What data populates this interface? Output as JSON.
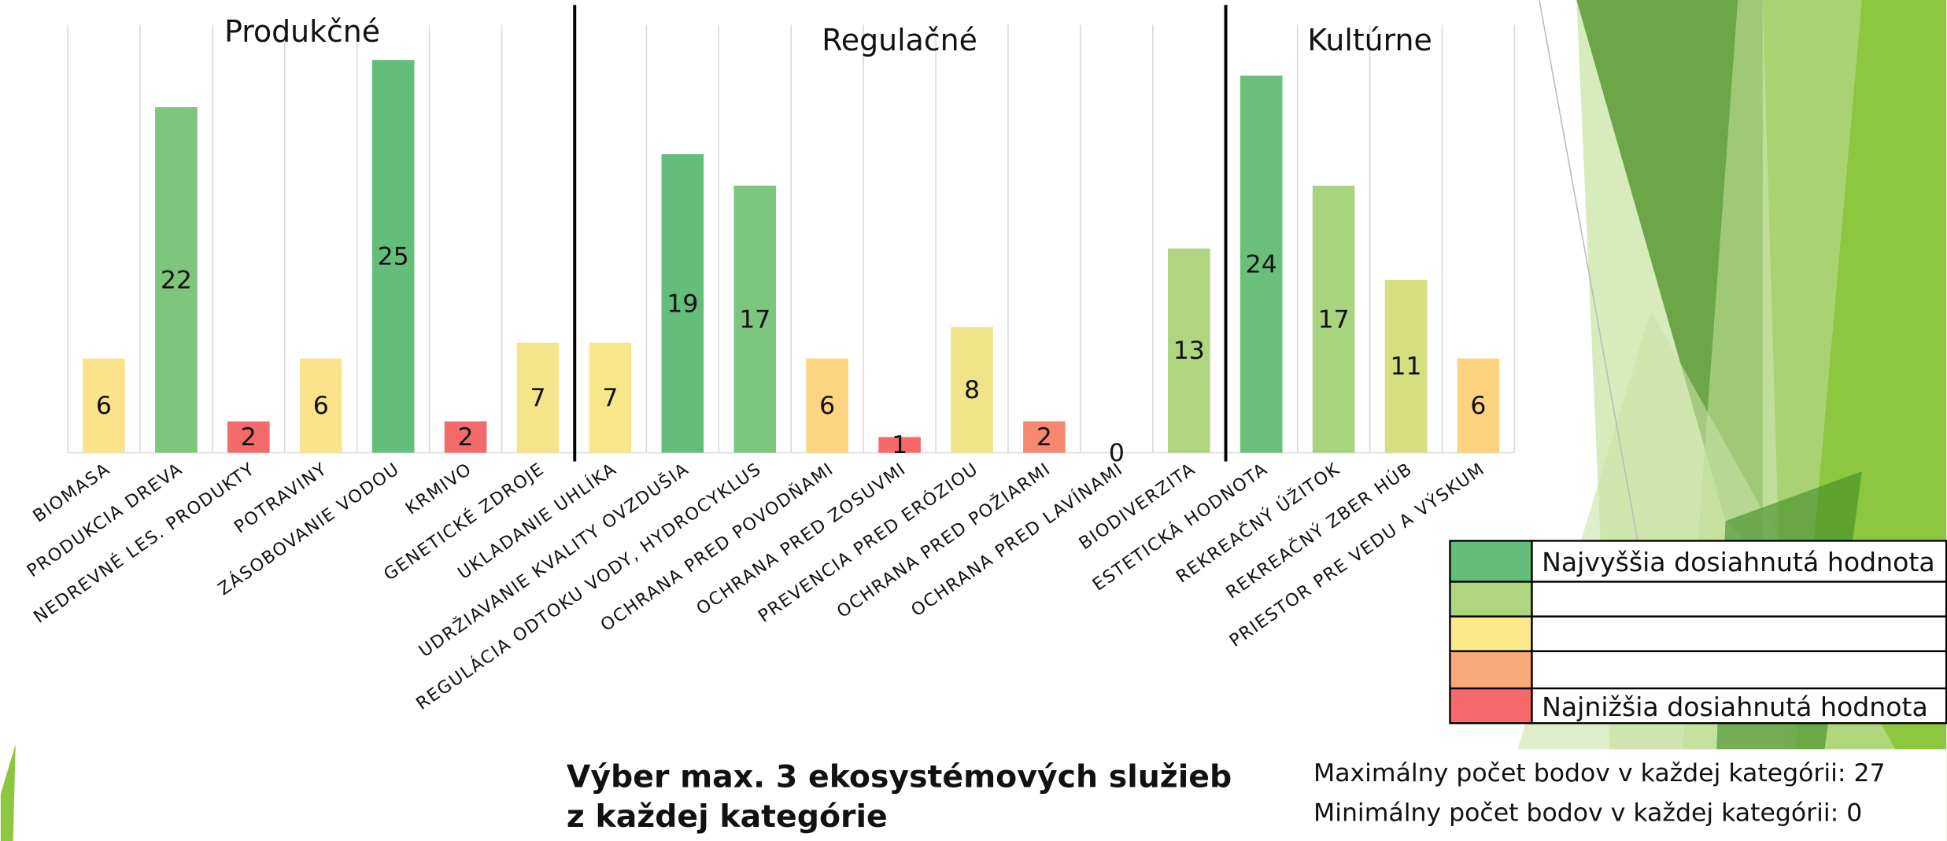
{
  "chart_data": {
    "type": "bar",
    "categories": [
      "BIOMASA",
      "PRODUKCIA DREVA",
      "NEDREVNÉ LES. PRODUKTY",
      "POTRAVINY",
      "ZÁSOBOVANIE VODOU",
      "KRMIVO",
      "GENETICKÉ ZDROJE",
      "UKLADANIE UHLÍKA",
      "UDRŽIAVANIE KVALITY OVZDUŠIA",
      "REGULÁCIA ODTOKU VODY, HYDROCYKLUS",
      "OCHRANA PRED POVODŇAMI",
      "OCHRANA PRED ZOSUVMI",
      "PREVENCIA PRED ERÓZIOU",
      "OCHRANA PRED POŽIARMI",
      "OCHRANA PRED LAVÍNAMI",
      "BIODIVERZITA",
      "ESTETICKÁ HODNOTA",
      "REKREAČNÝ ÚŽITOK",
      "REKREAČNÝ ZBER HÚB",
      "PRIESTOR PRE VEDU A VÝSKUM"
    ],
    "values": [
      6,
      22,
      2,
      6,
      25,
      2,
      7,
      7,
      19,
      17,
      6,
      1,
      8,
      2,
      0,
      13,
      24,
      17,
      11,
      6
    ],
    "colors": [
      "#fbe38b",
      "#7dc67c",
      "#f46b6b",
      "#fbe38b",
      "#63be7b",
      "#f46b6b",
      "#f5e58a",
      "#f8e68a",
      "#63be7b",
      "#7cc67d",
      "#fdd580",
      "#f8696b",
      "#f1e488",
      "#f8876f",
      "#f8696b",
      "#b0d580",
      "#6abf7c",
      "#a8d37f",
      "#d5df80",
      "#fdd380"
    ],
    "ylim": [
      0,
      27
    ],
    "groups": [
      {
        "label": "Produkčné",
        "start": 0,
        "end": 6
      },
      {
        "label": "Regulačné",
        "start": 7,
        "end": 15
      },
      {
        "label": "Kultúrne",
        "start": 16,
        "end": 19
      }
    ],
    "title": [
      "Výber max. 3 ekosystémových služieb",
      "z každej kategórie"
    ],
    "legend": [
      {
        "color": "#63be7b",
        "label": "Najvyššia dosiahnutá hodnota"
      },
      {
        "color": "#b0d580"
      },
      {
        "color": "#fbe98b"
      },
      {
        "color": "#f9a877"
      },
      {
        "color": "#f8696b",
        "label": "Najnižšia dosiahnutá hodnota"
      }
    ],
    "notes": [
      "Maximálny počet bodov v každej kategórii: 27",
      "Minimálny počet bodov v každej kategórii: 0"
    ]
  }
}
